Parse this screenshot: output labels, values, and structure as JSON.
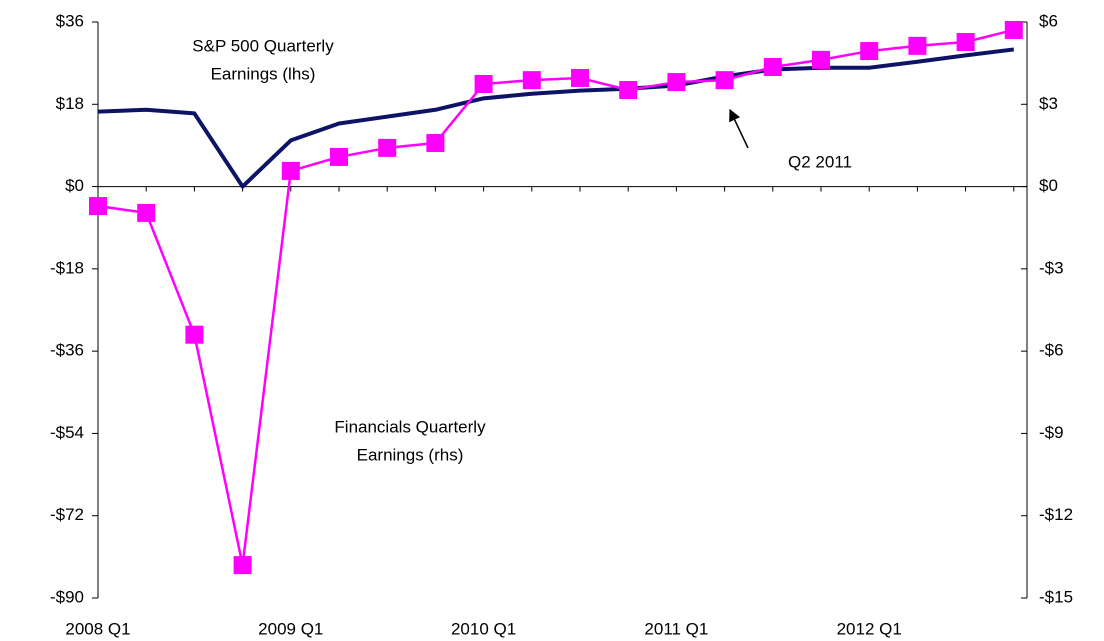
{
  "chart_data": {
    "type": "line",
    "categories": [
      "2008 Q1",
      null,
      null,
      null,
      "2009 Q1",
      null,
      null,
      null,
      "2010 Q1",
      null,
      null,
      null,
      "2011 Q1",
      null,
      null,
      null,
      "2012 Q1",
      null,
      null,
      null
    ],
    "series": [
      {
        "name": "S&P 500 Quarterly Earnings (lhs)",
        "color": "#0d1466",
        "axis": "y",
        "values": [
          16.4,
          16.8,
          16.0,
          0,
          10.1,
          13.8,
          15.3,
          16.8,
          19.3,
          20.3,
          21.0,
          21.4,
          22.1,
          24.1,
          25.6,
          26.0,
          26.0,
          27.3,
          28.7,
          30.0
        ]
      },
      {
        "name": "Financials Quarterly Earnings (rhs)",
        "color": "#ff00ff",
        "axis": "y2",
        "marker": "square",
        "values": [
          -0.71,
          -0.96,
          -5.4,
          -13.8,
          0.57,
          1.08,
          1.41,
          1.59,
          3.74,
          3.88,
          3.96,
          3.52,
          3.81,
          3.88,
          4.36,
          4.62,
          4.94,
          5.13,
          5.27,
          5.71
        ]
      }
    ],
    "ylim": [
      -90,
      36
    ],
    "yticks": [
      {
        "value": -90,
        "label": "-$90"
      },
      {
        "value": -72,
        "label": "-$72"
      },
      {
        "value": -54,
        "label": "-$54"
      },
      {
        "value": -36,
        "label": "-$36"
      },
      {
        "value": -18,
        "label": "-$18"
      },
      {
        "value": 0,
        "label": "$0"
      },
      {
        "value": 18,
        "label": "$18"
      },
      {
        "value": 36,
        "label": "$36"
      }
    ],
    "y2lim": [
      -15,
      6
    ],
    "y2ticks": [
      {
        "value": -15,
        "label": "-$15"
      },
      {
        "value": -12,
        "label": "-$12"
      },
      {
        "value": -9,
        "label": "-$9"
      },
      {
        "value": -6,
        "label": "-$6"
      },
      {
        "value": -3,
        "label": "-$3"
      },
      {
        "value": 0,
        "label": "$0"
      },
      {
        "value": 3,
        "label": "$3"
      },
      {
        "value": 6,
        "label": "$6"
      }
    ],
    "annotations": [
      {
        "lines": [
          "S&P 500 Quarterly",
          "Earnings (lhs)"
        ]
      },
      {
        "lines": [
          "Financials Quarterly",
          "Earnings (rhs)"
        ]
      },
      {
        "lines": [
          "Q2 2011"
        ]
      }
    ]
  }
}
